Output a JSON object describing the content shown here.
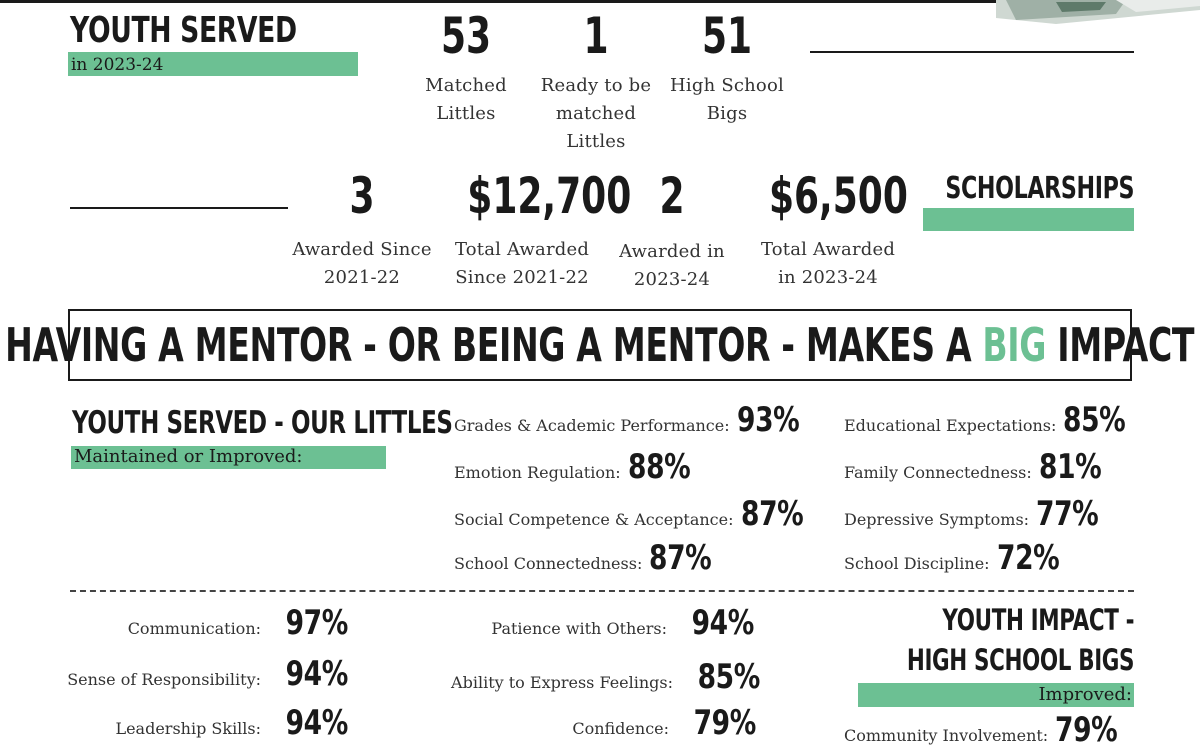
{
  "youth_served": {
    "heading": "YOUTH SERVED",
    "subheading": "in 2023-24",
    "stats": [
      {
        "value": "53",
        "caption": [
          "Matched",
          "Littles"
        ]
      },
      {
        "value": "1",
        "caption": [
          "Ready to be",
          "matched",
          "Littles"
        ]
      },
      {
        "value": "51",
        "caption": [
          "High School",
          "Bigs"
        ]
      }
    ]
  },
  "scholarships": {
    "heading": "SCHOLARSHIPS",
    "stats": [
      {
        "value": "3",
        "caption": [
          "Awarded Since",
          "2021-22"
        ]
      },
      {
        "value": "$12,700",
        "caption": [
          "Total Awarded",
          "Since 2021-22"
        ]
      },
      {
        "value": "2",
        "caption": [
          "Awarded in",
          "2023-24"
        ]
      },
      {
        "value": "$6,500",
        "caption": [
          "Total Awarded",
          "in 2023-24"
        ]
      }
    ]
  },
  "banner": {
    "before": "HAVING A MENTOR - OR BEING A MENTOR - MAKES A ",
    "highlight": "BIG",
    "after": " IMPACT"
  },
  "littles": {
    "heading": "YOUTH SERVED - OUR LITTLES",
    "subheading": "Maintained or Improved:",
    "col1": [
      {
        "label": "Grades & Academic Performance:",
        "value": "93%"
      },
      {
        "label": "Emotion Regulation:",
        "value": "88%"
      },
      {
        "label": "Social Competence & Acceptance:",
        "value": "87%"
      },
      {
        "label": "School Connectedness:",
        "value": "87%"
      }
    ],
    "col2": [
      {
        "label": "Educational Expectations:",
        "value": "85%"
      },
      {
        "label": "Family Connectedness:",
        "value": "81%"
      },
      {
        "label": "Depressive Symptoms:",
        "value": "77%"
      },
      {
        "label": "School Discipline:",
        "value": "72%"
      }
    ]
  },
  "bigs": {
    "heading_line1": "YOUTH IMPACT -",
    "heading_line2": "HIGH SCHOOL BIGS",
    "subheading": "Improved:",
    "col1": [
      {
        "label": "Communication:",
        "value": "97%"
      },
      {
        "label": "Sense of Responsibility:",
        "value": "94%"
      },
      {
        "label": "Leadership Skills:",
        "value": "94%"
      }
    ],
    "col2": [
      {
        "label": "Patience with Others:",
        "value": "94%"
      },
      {
        "label": "Ability to Express Feelings:",
        "value": "85%"
      },
      {
        "label": "Confidence:",
        "value": "79%"
      }
    ],
    "col3": [
      {
        "label": "Community Involvement:",
        "value": "79%"
      }
    ]
  },
  "colors": {
    "accent_green": "#6cc093",
    "text": "#1a1a1a"
  }
}
